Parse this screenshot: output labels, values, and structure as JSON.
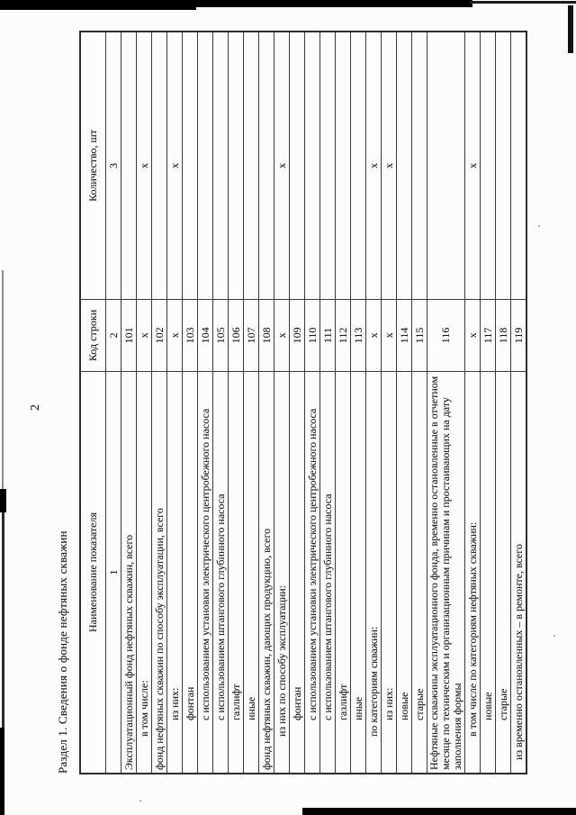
{
  "page": {
    "number": "2",
    "section_title": "Раздел 1. Сведения о фонде нефтяных скважин"
  },
  "table": {
    "columns": [
      "Наименование показателя",
      "Код строки",
      "Количество, шт"
    ],
    "numbering": [
      "1",
      "2",
      "3"
    ],
    "rows": [
      {
        "name": "Эксплуатационный фонд нефтяных скважин, всего",
        "code": "101",
        "qty": "",
        "level": 0
      },
      {
        "name": "в том числе:",
        "code": "х",
        "qty": "х",
        "level": 1
      },
      {
        "name": "фонд нефтяных скважин по способу эксплуатации, всего",
        "code": "102",
        "qty": "",
        "level": 0
      },
      {
        "name": "из них:",
        "code": "х",
        "qty": "х",
        "level": 2
      },
      {
        "name": "фонтан",
        "code": "103",
        "qty": "",
        "level": 2
      },
      {
        "name": "с использованием установки электрического центробежного насоса",
        "code": "104",
        "qty": "",
        "level": 2
      },
      {
        "name": "с использованием штангового глубинного насоса",
        "code": "105",
        "qty": "",
        "level": 2
      },
      {
        "name": "газлифт",
        "code": "106",
        "qty": "",
        "level": 2
      },
      {
        "name": "иные",
        "code": "107",
        "qty": "",
        "level": 2
      },
      {
        "name": "фонд нефтяных скважин, дающих продукцию, всего",
        "code": "108",
        "qty": "",
        "level": 0
      },
      {
        "name": "из них по способу эксплуатации:",
        "code": "х",
        "qty": "х",
        "level": 1
      },
      {
        "name": "фонтан",
        "code": "109",
        "qty": "",
        "level": 2
      },
      {
        "name": "с использованием установки электрического центробежного насоса",
        "code": "110",
        "qty": "",
        "level": 2
      },
      {
        "name": "с использованием штангового глубинного насоса",
        "code": "111",
        "qty": "",
        "level": 2
      },
      {
        "name": "газлифт",
        "code": "112",
        "qty": "",
        "level": 2
      },
      {
        "name": "иные",
        "code": "113",
        "qty": "",
        "level": 2
      },
      {
        "name": "по категориям скважин:",
        "code": "х",
        "qty": "х",
        "level": 1
      },
      {
        "name": "из них:",
        "code": "х",
        "qty": "х",
        "level": 2
      },
      {
        "name": "новые",
        "code": "114",
        "qty": "",
        "level": 2
      },
      {
        "name": "старые",
        "code": "115",
        "qty": "",
        "level": 2
      },
      {
        "name": "Нефтяные скважины эксплуатационного фонда, временно остановленные в отчетном месяце по техническим и организационным причинам и простаивающих на дату заполнения формы",
        "code": "116",
        "qty": "",
        "level": 0
      },
      {
        "name": "в том числе по категориям нефтяных скважин:",
        "code": "х",
        "qty": "х",
        "level": 1
      },
      {
        "name": "новые",
        "code": "117",
        "qty": "",
        "level": 2
      },
      {
        "name": "старые",
        "code": "118",
        "qty": "",
        "level": 2
      },
      {
        "name": "из временно остановленных – в ремонте, всего",
        "code": "119",
        "qty": "",
        "level": 3
      }
    ]
  }
}
